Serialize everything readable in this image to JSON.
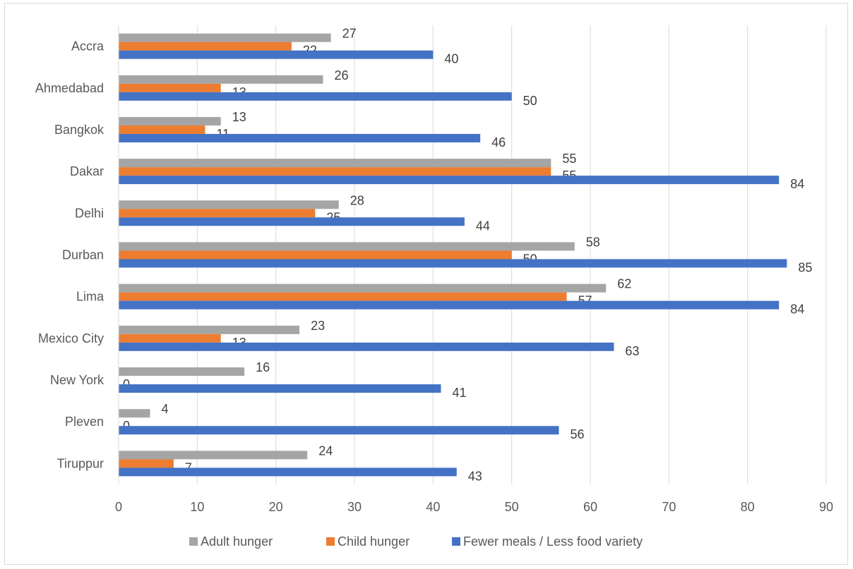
{
  "chart_data": {
    "type": "bar",
    "orientation": "horizontal",
    "categories": [
      "Accra",
      "Ahmedabad",
      "Bangkok",
      "Dakar",
      "Delhi",
      "Durban",
      "Lima",
      "Mexico City",
      "New York",
      "Pleven",
      "Tiruppur"
    ],
    "series": [
      {
        "name": "Adult hunger",
        "color": "#a5a5a5",
        "values": [
          27,
          26,
          13,
          55,
          28,
          58,
          62,
          23,
          16,
          4,
          24
        ]
      },
      {
        "name": "Child hunger",
        "color": "#ed7d31",
        "values": [
          22,
          13,
          11,
          55,
          25,
          50,
          57,
          13,
          0,
          0,
          7
        ]
      },
      {
        "name": "Fewer meals / Less food variety",
        "color": "#4472c4",
        "values": [
          40,
          50,
          46,
          84,
          44,
          85,
          84,
          63,
          41,
          56,
          43
        ]
      }
    ],
    "xlim": [
      0,
      90
    ],
    "xticks": [
      0,
      10,
      20,
      30,
      40,
      50,
      60,
      70,
      80,
      90
    ],
    "grid": "vertical",
    "legend_position": "bottom",
    "data_labels": true
  }
}
